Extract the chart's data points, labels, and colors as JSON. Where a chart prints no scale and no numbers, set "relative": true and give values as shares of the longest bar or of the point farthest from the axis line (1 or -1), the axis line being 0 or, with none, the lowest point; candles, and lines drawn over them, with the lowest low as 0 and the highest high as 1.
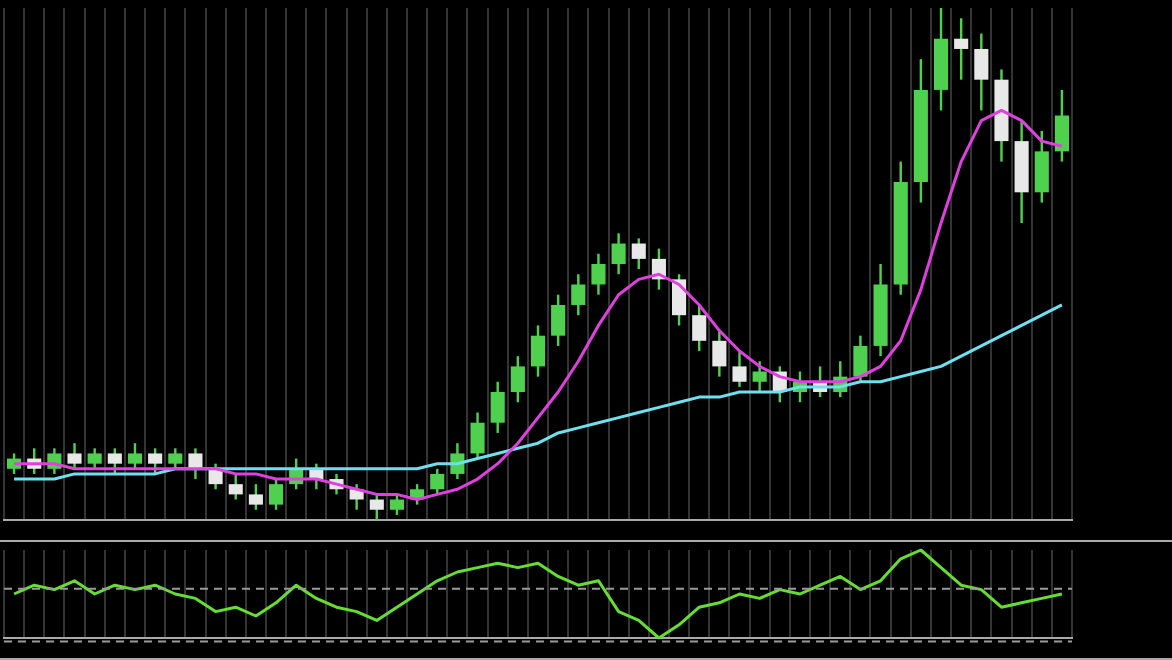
{
  "chart_data": [
    {
      "type": "candlestick",
      "relative": true,
      "grid": "x",
      "legend": false,
      "categories": [
        null,
        null,
        null,
        null,
        null,
        null,
        null,
        null,
        null,
        null,
        null,
        null,
        null,
        null,
        null,
        null,
        null,
        null,
        null,
        null,
        null,
        null,
        null,
        null,
        null,
        null,
        null,
        null,
        null,
        null,
        null,
        null,
        null,
        null,
        null,
        null,
        null,
        null,
        null,
        null,
        null,
        null,
        null,
        null,
        null,
        null,
        null,
        null,
        null,
        null,
        null,
        null,
        null
      ],
      "color": "#4fd14f",
      "colors": [
        "#4fd14f",
        "#e8e8e8",
        "#4fd14f",
        "#e8e8e8",
        "#4fd14f",
        "#e8e8e8",
        "#4fd14f",
        "#e8e8e8",
        "#4fd14f",
        "#e8e8e8",
        "#e8e8e8",
        "#e8e8e8",
        "#e8e8e8",
        "#4fd14f",
        "#4fd14f",
        "#e8e8e8",
        "#e8e8e8",
        "#e8e8e8",
        "#e8e8e8",
        "#4fd14f",
        "#4fd14f",
        "#4fd14f",
        "#4fd14f",
        "#4fd14f",
        "#4fd14f",
        "#4fd14f",
        "#4fd14f",
        "#4fd14f",
        "#4fd14f",
        "#4fd14f",
        "#4fd14f",
        "#e8e8e8",
        "#e8e8e8",
        "#e8e8e8",
        "#e8e8e8",
        "#e8e8e8",
        "#e8e8e8",
        "#4fd14f",
        "#e8e8e8",
        "#4fd14f",
        "#e8e8e8",
        "#4fd14f",
        "#4fd14f",
        "#4fd14f",
        "#4fd14f",
        "#4fd14f",
        "#4fd14f",
        "#e8e8e8",
        "#e8e8e8",
        "#e8e8e8",
        "#e8e8e8",
        "#4fd14f",
        "#4fd14f"
      ],
      "ohlc": [
        [
          0.1,
          0.13,
          0.09,
          0.12
        ],
        [
          0.12,
          0.14,
          0.09,
          0.1
        ],
        [
          0.1,
          0.14,
          0.09,
          0.13
        ],
        [
          0.13,
          0.15,
          0.1,
          0.11
        ],
        [
          0.11,
          0.14,
          0.1,
          0.13
        ],
        [
          0.13,
          0.14,
          0.09,
          0.11
        ],
        [
          0.11,
          0.15,
          0.1,
          0.13
        ],
        [
          0.13,
          0.14,
          0.09,
          0.11
        ],
        [
          0.11,
          0.14,
          0.1,
          0.13
        ],
        [
          0.13,
          0.14,
          0.08,
          0.1
        ],
        [
          0.1,
          0.11,
          0.06,
          0.07
        ],
        [
          0.07,
          0.09,
          0.04,
          0.05
        ],
        [
          0.05,
          0.07,
          0.02,
          0.03
        ],
        [
          0.03,
          0.08,
          0.02,
          0.07
        ],
        [
          0.07,
          0.12,
          0.06,
          0.1
        ],
        [
          0.1,
          0.11,
          0.06,
          0.08
        ],
        [
          0.08,
          0.09,
          0.05,
          0.06
        ],
        [
          0.06,
          0.07,
          0.02,
          0.04
        ],
        [
          0.04,
          0.05,
          0,
          0.02
        ],
        [
          0.02,
          0.05,
          0.01,
          0.04
        ],
        [
          0.04,
          0.07,
          0.03,
          0.06
        ],
        [
          0.06,
          0.1,
          0.05,
          0.09
        ],
        [
          0.09,
          0.15,
          0.08,
          0.13
        ],
        [
          0.13,
          0.21,
          0.12,
          0.19
        ],
        [
          0.19,
          0.27,
          0.17,
          0.25
        ],
        [
          0.25,
          0.32,
          0.23,
          0.3
        ],
        [
          0.3,
          0.38,
          0.28,
          0.36
        ],
        [
          0.36,
          0.44,
          0.34,
          0.42
        ],
        [
          0.42,
          0.48,
          0.4,
          0.46
        ],
        [
          0.46,
          0.52,
          0.44,
          0.5
        ],
        [
          0.5,
          0.56,
          0.48,
          0.54
        ],
        [
          0.54,
          0.55,
          0.49,
          0.51
        ],
        [
          0.51,
          0.53,
          0.45,
          0.47
        ],
        [
          0.47,
          0.48,
          0.38,
          0.4
        ],
        [
          0.4,
          0.42,
          0.33,
          0.35
        ],
        [
          0.35,
          0.37,
          0.28,
          0.3
        ],
        [
          0.3,
          0.33,
          0.26,
          0.27
        ],
        [
          0.27,
          0.31,
          0.25,
          0.29
        ],
        [
          0.29,
          0.3,
          0.23,
          0.25
        ],
        [
          0.25,
          0.29,
          0.23,
          0.27
        ],
        [
          0.27,
          0.3,
          0.24,
          0.25
        ],
        [
          0.25,
          0.31,
          0.24,
          0.28
        ],
        [
          0.28,
          0.36,
          0.27,
          0.34
        ],
        [
          0.34,
          0.5,
          0.32,
          0.46
        ],
        [
          0.46,
          0.7,
          0.44,
          0.66
        ],
        [
          0.66,
          0.9,
          0.62,
          0.84
        ],
        [
          0.84,
          1,
          0.8,
          0.94
        ],
        [
          0.94,
          0.98,
          0.86,
          0.92
        ],
        [
          0.92,
          0.95,
          0.8,
          0.86
        ],
        [
          0.86,
          0.88,
          0.7,
          0.74
        ],
        [
          0.74,
          0.78,
          0.58,
          0.64
        ],
        [
          0.64,
          0.76,
          0.62,
          0.72
        ],
        [
          0.72,
          0.84,
          0.7,
          0.79
        ]
      ],
      "series": [
        {
          "type": "line",
          "color": "#e040e0",
          "values": [
            0.11,
            0.11,
            0.11,
            0.1,
            0.1,
            0.1,
            0.1,
            0.1,
            0.1,
            0.1,
            0.1,
            0.09,
            0.09,
            0.08,
            0.08,
            0.08,
            0.07,
            0.06,
            0.05,
            0.05,
            0.04,
            0.05,
            0.06,
            0.08,
            0.11,
            0.15,
            0.2,
            0.25,
            0.31,
            0.38,
            0.44,
            0.47,
            0.48,
            0.46,
            0.42,
            0.37,
            0.33,
            0.3,
            0.28,
            0.27,
            0.27,
            0.27,
            0.28,
            0.3,
            0.35,
            0.45,
            0.58,
            0.7,
            0.78,
            0.8,
            0.78,
            0.74,
            0.73
          ]
        },
        {
          "type": "line",
          "color": "#6fe0ee",
          "values": [
            0.08,
            0.08,
            0.08,
            0.09,
            0.09,
            0.09,
            0.09,
            0.09,
            0.1,
            0.1,
            0.1,
            0.1,
            0.1,
            0.1,
            0.1,
            0.1,
            0.1,
            0.1,
            0.1,
            0.1,
            0.1,
            0.11,
            0.11,
            0.12,
            0.13,
            0.14,
            0.15,
            0.17,
            0.18,
            0.19,
            0.2,
            0.21,
            0.22,
            0.23,
            0.24,
            0.24,
            0.25,
            0.25,
            0.25,
            0.26,
            0.26,
            0.26,
            0.27,
            0.27,
            0.28,
            0.29,
            0.3,
            0.32,
            0.34,
            0.36,
            0.38,
            0.4,
            0.42
          ]
        }
      ]
    },
    {
      "type": "line",
      "relative": true,
      "grid": "x",
      "legend": false,
      "categories": [
        null,
        null,
        null,
        null,
        null,
        null,
        null,
        null,
        null,
        null,
        null,
        null,
        null,
        null,
        null,
        null,
        null,
        null,
        null,
        null,
        null,
        null,
        null,
        null,
        null,
        null,
        null,
        null,
        null,
        null,
        null,
        null,
        null,
        null,
        null,
        null,
        null,
        null,
        null,
        null,
        null,
        null,
        null,
        null,
        null,
        null,
        null,
        null,
        null,
        null,
        null,
        null,
        null
      ],
      "ref_lines": [
        {
          "axis": "y",
          "value": 0.56,
          "color": "#9a9a9a",
          "line_style": "dashed"
        },
        {
          "axis": "y",
          "value": -0.04,
          "color": "#9a9a9a",
          "line_style": "dashed"
        }
      ],
      "series": [
        {
          "color": "#66dd33",
          "values": [
            0.5,
            0.6,
            0.55,
            0.65,
            0.5,
            0.6,
            0.55,
            0.6,
            0.5,
            0.45,
            0.3,
            0.35,
            0.25,
            0.4,
            0.6,
            0.45,
            0.35,
            0.3,
            0.2,
            0.35,
            0.5,
            0.65,
            0.75,
            0.8,
            0.85,
            0.8,
            0.85,
            0.7,
            0.6,
            0.65,
            0.3,
            0.2,
            0,
            0.15,
            0.35,
            0.4,
            0.5,
            0.45,
            0.55,
            0.5,
            0.6,
            0.7,
            0.55,
            0.65,
            0.9,
            1,
            0.8,
            0.6,
            0.55,
            0.35,
            0.4,
            0.45,
            0.5
          ]
        }
      ]
    }
  ]
}
